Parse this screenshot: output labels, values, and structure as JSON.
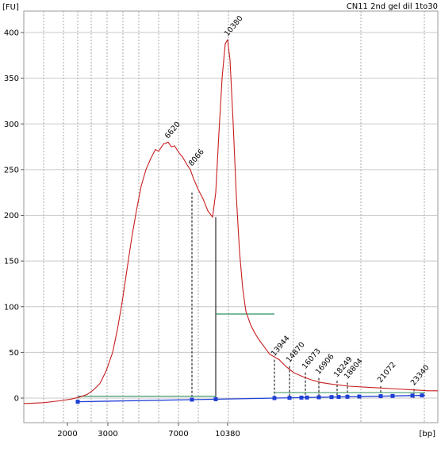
{
  "chart_data": {
    "type": "line",
    "title": "CN11 2nd gel dil 1to30",
    "xlabel": "[bp]",
    "ylabel": "[FU]",
    "ylim": [
      -10,
      420
    ],
    "y_ticks": [
      "0",
      "50",
      "100",
      "150",
      "200",
      "250",
      "300",
      "350",
      "400"
    ],
    "x_ticks": [
      "2000",
      "3000",
      "7000",
      "10380"
    ],
    "grid": true,
    "colors": {
      "trace": "#c81e1e",
      "baseline": "#1f3fd6",
      "marker": "#1f3fd6",
      "highlight_label": "#7b3fbf",
      "region": "#2f8f5a",
      "grid": "#c8c8c8",
      "dash_grid": "#a8a8a8"
    },
    "series": [
      {
        "x": [
          30,
          55,
          75,
          90,
          100,
          110,
          118,
          126,
          134,
          142,
          148,
          154,
          160,
          166,
          172,
          178,
          184,
          190,
          196,
          200,
          206,
          212,
          216,
          220,
          226,
          230,
          236,
          240,
          244,
          250,
          256,
          262,
          268,
          272,
          276,
          280,
          284,
          287,
          290,
          294,
          298,
          302,
          306,
          310,
          316,
          322,
          328,
          334,
          340,
          346,
          352,
          360,
          370,
          380,
          392,
          405,
          420,
          440,
          460,
          480,
          500,
          520,
          540,
          552
        ],
        "y": [
          -6,
          -5,
          -3,
          -1,
          1,
          4,
          9,
          16,
          30,
          50,
          75,
          105,
          140,
          175,
          205,
          232,
          250,
          262,
          272,
          270,
          278,
          280,
          275,
          276,
          268,
          264,
          255,
          250,
          240,
          228,
          218,
          205,
          198,
          225,
          290,
          350,
          388,
          392,
          370,
          300,
          220,
          160,
          120,
          95,
          80,
          70,
          62,
          55,
          48,
          45,
          42,
          35,
          28,
          24,
          20,
          17,
          15,
          13,
          12,
          11,
          10,
          9,
          8,
          8
        ]
      }
    ],
    "peaks": [
      {
        "label": "6620",
        "x": 212,
        "y": 280
      },
      {
        "label": "8066",
        "x": 242,
        "y": 250
      },
      {
        "label": "10380",
        "x": 287,
        "y": 392
      },
      {
        "label": "13944",
        "x": 346,
        "y": 42
      },
      {
        "label": "14870",
        "x": 365,
        "y": 35
      },
      {
        "label": "16073",
        "x": 385,
        "y": 28
      },
      {
        "label": "16906",
        "x": 402,
        "y": 22
      },
      {
        "label": "18249",
        "x": 425,
        "y": 19
      },
      {
        "label": "18804",
        "x": 438,
        "y": 17
      },
      {
        "label": "21072",
        "x": 480,
        "y": 13
      },
      {
        "label": "23340",
        "x": 522,
        "y": 10
      }
    ],
    "baseline_markers": [
      98,
      242,
      272,
      346,
      365,
      380,
      387,
      402,
      418,
      427,
      438,
      453,
      480,
      495,
      520,
      532
    ]
  }
}
